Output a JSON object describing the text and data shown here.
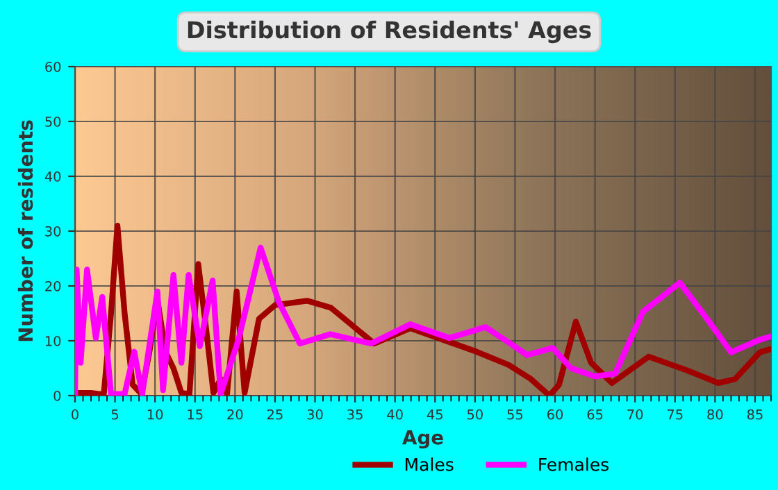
{
  "chart_data": {
    "type": "line",
    "title": "Distribution of Residents' Ages",
    "xlabel": "Age",
    "ylabel": "Number of residents",
    "xlim": [
      0,
      87
    ],
    "xticks": [
      0,
      5,
      10,
      15,
      20,
      25,
      30,
      35,
      40,
      45,
      50,
      55,
      60,
      65,
      70,
      75,
      80,
      85
    ],
    "ylim": [
      0,
      60
    ],
    "yticks": [
      0,
      10,
      20,
      30,
      40,
      50,
      60
    ],
    "grid": true,
    "legend": "bottom",
    "line_style": "solid",
    "marker": "none",
    "series": [
      {
        "name": "Males",
        "color": "#a00000",
        "x": [
          0,
          1,
          2,
          3,
          3.6,
          4.5,
          5.3,
          6.2,
          7.2,
          8.3,
          9.3,
          10.3,
          11.3,
          12.3,
          13.3,
          14.3,
          15.4,
          16.4,
          17.3,
          18.2,
          19,
          20.2,
          21.2,
          23,
          25,
          29,
          32,
          37.4,
          41.9,
          44.4,
          50.2,
          54.2,
          57,
          59.3,
          60.5,
          62.6,
          64.5,
          67.1,
          71.7,
          76.5,
          80.4,
          82.5,
          85.6,
          87
        ],
        "values": [
          0.5,
          0.5,
          0.5,
          0.3,
          0.3,
          15,
          31,
          15,
          2,
          0.3,
          8,
          17.5,
          8,
          5,
          0.5,
          0.3,
          24,
          12,
          0.5,
          3,
          0.3,
          19,
          0.5,
          14,
          16.5,
          17.3,
          16,
          9.5,
          12.3,
          11,
          8,
          5.6,
          3,
          0,
          2,
          13.5,
          6,
          2.3,
          7.1,
          4.6,
          2.3,
          3,
          7.9,
          8.5
        ]
      },
      {
        "name": "Females",
        "color": "#ff00ff",
        "x": [
          0,
          0.2,
          0.7,
          1.5,
          2.6,
          3.4,
          4.5,
          6.2,
          7.4,
          8.4,
          10.3,
          11,
          12.3,
          13.3,
          14.2,
          15.6,
          17.2,
          18.2,
          20.4,
          23.2,
          25.5,
          28.1,
          31.9,
          37,
          41.9,
          46.8,
          51.3,
          54.2,
          56.5,
          59.7,
          62,
          65,
          67.5,
          71,
          75.6,
          79.4,
          82,
          85.6,
          87
        ],
        "values": [
          0,
          23,
          6,
          23,
          10.5,
          18,
          0.3,
          0.3,
          8,
          0.3,
          19,
          1,
          22,
          6,
          22,
          9,
          21,
          0.3,
          10,
          27,
          17,
          9.5,
          11.2,
          9.5,
          13,
          10.5,
          12.5,
          9.7,
          7.4,
          8.7,
          5,
          3.5,
          4,
          15.3,
          20.6,
          13.2,
          7.9,
          10.2,
          10.8
        ]
      }
    ]
  }
}
